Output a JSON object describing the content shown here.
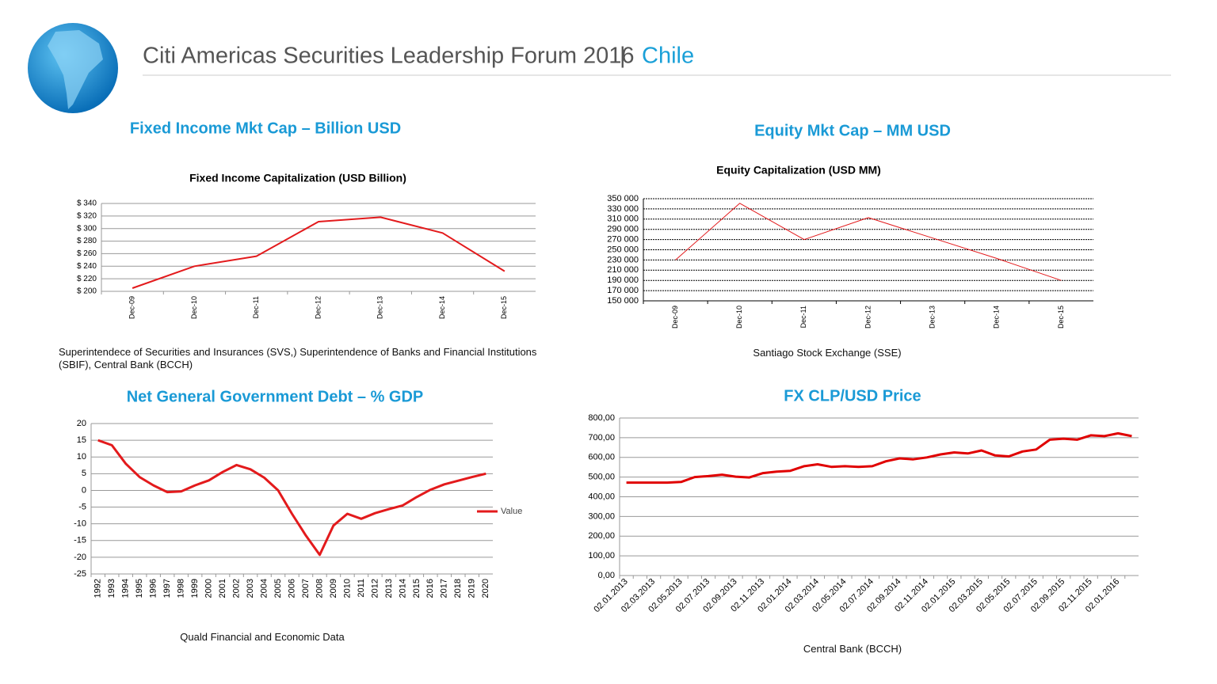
{
  "header": {
    "title": "Citi Americas Securities Leadership Forum 2016",
    "separator": "|",
    "country": "Chile"
  },
  "chart_data": [
    {
      "type": "line",
      "heading": "Fixed Income Mkt Cap – Billion USD",
      "title": "Fixed Income Capitalization (USD Billion)",
      "source": "Superintendece of Securities and Insurances (SVS,) Superintendence of Banks and Financial Institutions (SBIF), Central Bank (BCCH)",
      "categories": [
        "Dec-09",
        "Dec-10",
        "Dec-11",
        "Dec-12",
        "Dec-13",
        "Dec-14",
        "Dec-15"
      ],
      "values": [
        205,
        240,
        256,
        311,
        318,
        293,
        232
      ],
      "color": "#e31a1c",
      "ylim": [
        200,
        340
      ],
      "yticks": [
        {
          "value": 200,
          "label": "$ 200"
        },
        {
          "value": 220,
          "label": "$ 220"
        },
        {
          "value": 240,
          "label": "$ 240"
        },
        {
          "value": 260,
          "label": "$ 260"
        },
        {
          "value": 280,
          "label": "$ 280"
        },
        {
          "value": 300,
          "label": "$ 300"
        },
        {
          "value": 320,
          "label": "$ 320"
        },
        {
          "value": 340,
          "label": "$ 340"
        }
      ],
      "grid": true
    },
    {
      "type": "line",
      "heading": "Equity Mkt Cap – MM USD",
      "title": "Equity Capitalization (USD MM)",
      "source": "Santiago Stock Exchange (SSE)",
      "categories": [
        "Dec-09",
        "Dec-10",
        "Dec-11",
        "Dec-12",
        "Dec-13",
        "Dec-14",
        "Dec-15"
      ],
      "values": [
        230000,
        341000,
        270000,
        313000,
        273000,
        233000,
        190000
      ],
      "color": "#e31a1c",
      "ylim": [
        150000,
        350000
      ],
      "yticks": [
        {
          "value": 150000,
          "label": "150 000"
        },
        {
          "value": 170000,
          "label": "170 000"
        },
        {
          "value": 190000,
          "label": "190 000"
        },
        {
          "value": 210000,
          "label": "210 000"
        },
        {
          "value": 230000,
          "label": "230 000"
        },
        {
          "value": 250000,
          "label": "250 000"
        },
        {
          "value": 270000,
          "label": "270 000"
        },
        {
          "value": 290000,
          "label": "290 000"
        },
        {
          "value": 310000,
          "label": "310 000"
        },
        {
          "value": 330000,
          "label": "330 000"
        },
        {
          "value": 350000,
          "label": "350 000"
        }
      ],
      "grid": true
    },
    {
      "type": "line",
      "heading": "Net General Government Debt – % GDP",
      "source": "Quald Financial and Economic Data",
      "categories": [
        "1992",
        "1993",
        "1994",
        "1995",
        "1996",
        "1997",
        "1998",
        "1999",
        "2000",
        "2001",
        "2002",
        "2003",
        "2004",
        "2005",
        "2006",
        "2007",
        "2008",
        "2009",
        "2010",
        "2011",
        "2012",
        "2013",
        "2014",
        "2015",
        "2016",
        "2017",
        "2018",
        "2019",
        "2020"
      ],
      "series": [
        {
          "name": "Value",
          "color": "#e31a1c",
          "values": [
            15,
            13.5,
            8,
            4,
            1.5,
            -0.5,
            -0.3,
            1.5,
            3,
            5.5,
            7.6,
            6.3,
            3.8,
            0,
            -7,
            -13.5,
            -19.3,
            -10.5,
            -7,
            -8.5,
            -6.8,
            -5.6,
            -4.5,
            -2,
            0.2,
            1.8,
            2.9,
            4,
            5
          ]
        }
      ],
      "ylim": [
        -25,
        20
      ],
      "yticks": [
        -25,
        -20,
        -15,
        -10,
        -5,
        0,
        5,
        10,
        15,
        20
      ],
      "grid": true,
      "legend": "right"
    },
    {
      "type": "line",
      "heading": "FX CLP/USD Price",
      "source": "Central Bank (BCCH)",
      "categories": [
        "02.01.2013",
        null,
        "02.03.2013",
        null,
        "02.05.2013",
        null,
        "02.07.2013",
        null,
        "02.09.2013",
        null,
        "02.11.2013",
        null,
        "02.01.2014",
        null,
        "02.03.2014",
        null,
        "02.05.2014",
        null,
        "02.07.2014",
        null,
        "02.09.2014",
        null,
        "02.11.2014",
        null,
        "02.01.2015",
        null,
        "02.03.2015",
        null,
        "02.05.2015",
        null,
        "02.07.2015",
        null,
        "02.09.2015",
        null,
        "02.11.2015",
        null,
        "02.01.2016",
        null
      ],
      "values": [
        472,
        472,
        472,
        472,
        475,
        500,
        505,
        512,
        502,
        498,
        520,
        528,
        532,
        555,
        565,
        552,
        555,
        552,
        555,
        580,
        595,
        590,
        600,
        615,
        625,
        620,
        635,
        610,
        605,
        630,
        640,
        690,
        695,
        690,
        712,
        708,
        722,
        708
      ],
      "color": "#e00000",
      "ylim": [
        0,
        800
      ],
      "yticks": [
        {
          "value": 0,
          "label": "0,00"
        },
        {
          "value": 100,
          "label": "100,00"
        },
        {
          "value": 200,
          "label": "200,00"
        },
        {
          "value": 300,
          "label": "300,00"
        },
        {
          "value": 400,
          "label": "400,00"
        },
        {
          "value": 500,
          "label": "500,00"
        },
        {
          "value": 600,
          "label": "600,00"
        },
        {
          "value": 700,
          "label": "700,00"
        },
        {
          "value": 800,
          "label": "800,00"
        }
      ],
      "grid": true
    }
  ]
}
